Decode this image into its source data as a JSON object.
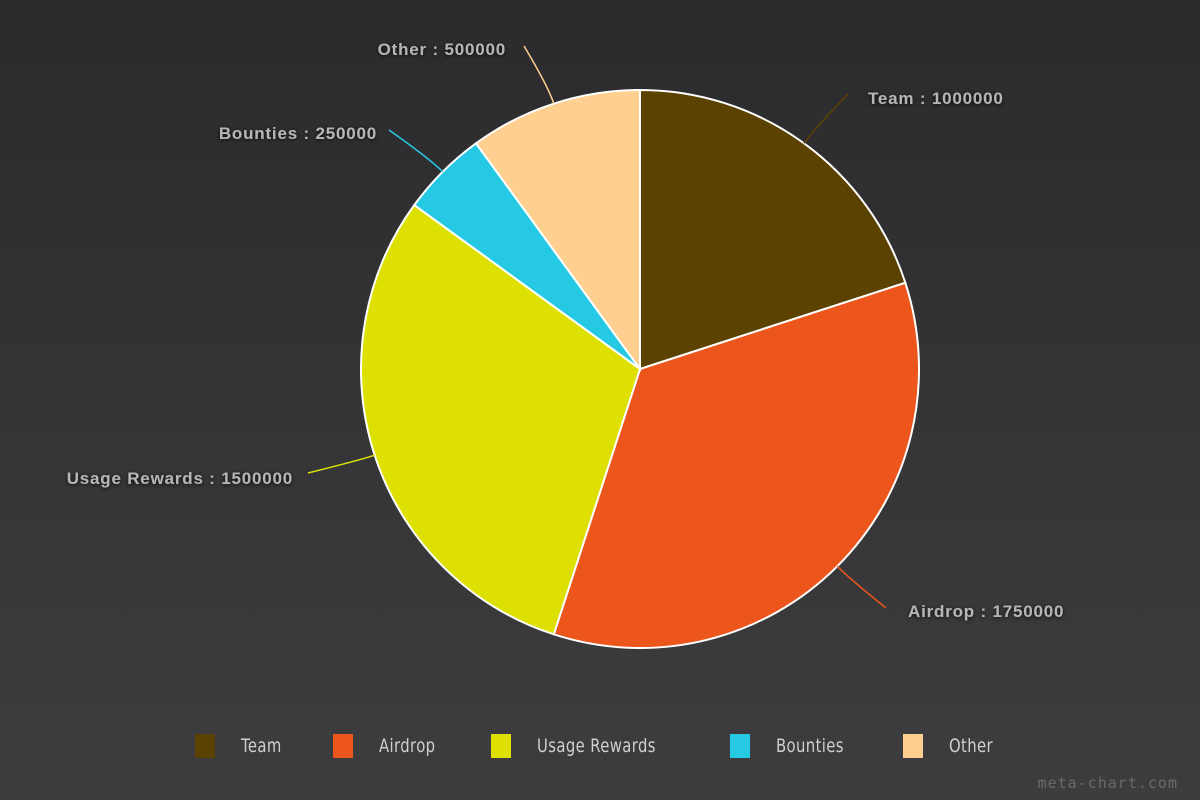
{
  "chart_data": {
    "type": "pie",
    "title": "",
    "total": 5000000,
    "start_angle_deg": 0,
    "direction": "clockwise",
    "slices": [
      {
        "label": "Team",
        "value": 1000000,
        "color": "#5c4200",
        "data_label": "Team : 1000000"
      },
      {
        "label": "Airdrop",
        "value": 1750000,
        "color": "#ec561c",
        "data_label": "Airdrop : 1750000"
      },
      {
        "label": "Usage Rewards",
        "value": 1500000,
        "color": "#dde000",
        "data_label": "Usage Rewards : 1500000"
      },
      {
        "label": "Bounties",
        "value": 250000,
        "color": "#26c9e3",
        "data_label": "Bounties : 250000"
      },
      {
        "label": "Other",
        "value": 500000,
        "color": "#ffcf90",
        "data_label": "Other : 500000"
      }
    ],
    "legend_position": "bottom"
  },
  "legend": [
    {
      "label": "Team",
      "color": "#5c4200"
    },
    {
      "label": "Airdrop",
      "color": "#ec561c"
    },
    {
      "label": "Usage Rewards",
      "color": "#dde000"
    },
    {
      "label": "Bounties",
      "color": "#26c9e3"
    },
    {
      "label": "Other",
      "color": "#ffcf90"
    }
  ],
  "watermark": "meta-chart.com"
}
